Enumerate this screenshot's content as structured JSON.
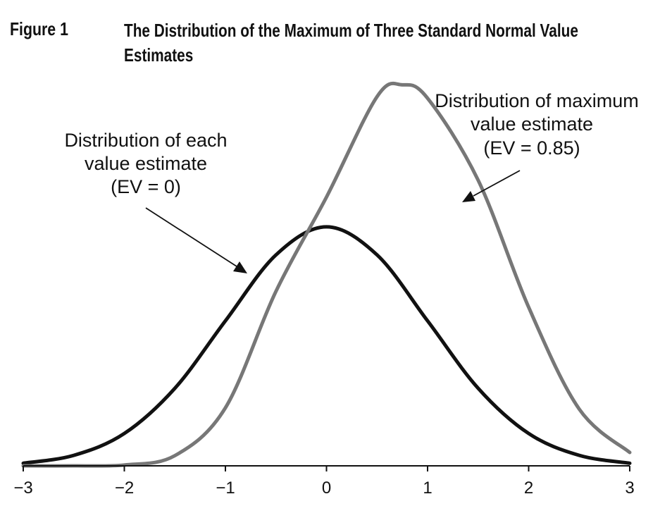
{
  "figure_label": "Figure 1",
  "chart_data": {
    "type": "line",
    "title": "The Distribution of the Maximum of Three Standard Normal Value Estimates",
    "xlabel": "",
    "ylabel": "",
    "xlim": [
      -3,
      3
    ],
    "xticks": [
      "−3",
      "−2",
      "−1",
      "0",
      "1",
      "2",
      "3"
    ],
    "xtick_values": [
      -3,
      -2,
      -1,
      0,
      1,
      2,
      3
    ],
    "grid": false,
    "series": [
      {
        "name": "Distribution of each value estimate (EV = 0)",
        "color": "#111111",
        "x": [
          -3,
          -2.5,
          -2,
          -1.5,
          -1,
          -0.5,
          0,
          0.5,
          1,
          1.5,
          2,
          2.5,
          3
        ],
        "y": [
          0.0044,
          0.0175,
          0.054,
          0.1295,
          0.242,
          0.3521,
          0.3989,
          0.3521,
          0.242,
          0.1295,
          0.054,
          0.0175,
          0.0044
        ]
      },
      {
        "name": "Distribution of maximum value estimate (EV = 0.85)",
        "color": "#777777",
        "x": [
          -3,
          -2.5,
          -2,
          -1.5,
          -1,
          -0.5,
          0,
          0.5,
          0.75,
          1,
          1.5,
          2,
          2.5,
          3
        ],
        "y": [
          0.0,
          0.0,
          0.0014,
          0.0171,
          0.0968,
          0.2914,
          0.4487,
          0.6164,
          0.636,
          0.6137,
          0.4768,
          0.2648,
          0.0947,
          0.0223
        ]
      }
    ],
    "annotations": [
      {
        "lines": [
          "Distribution of each",
          "value estimate",
          "(EV = 0)"
        ],
        "series": 0
      },
      {
        "lines": [
          "Distribution of maximum",
          "value estimate",
          "(EV = 0.85)"
        ],
        "series": 1
      }
    ]
  }
}
